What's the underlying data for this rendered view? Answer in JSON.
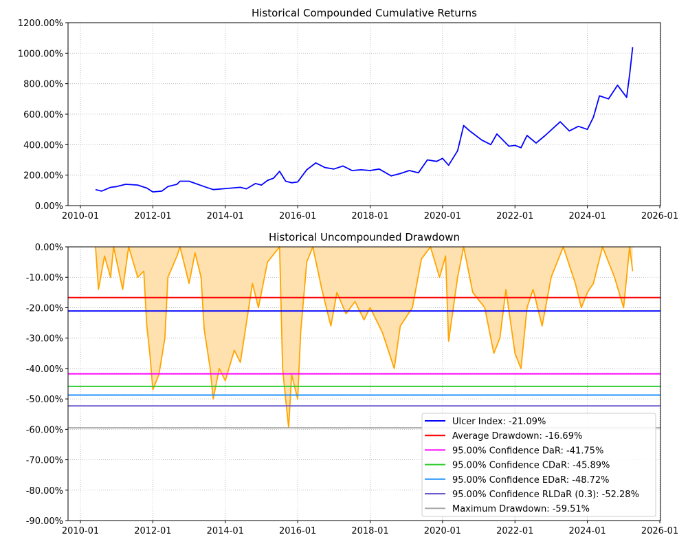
{
  "chart_data": [
    {
      "type": "line",
      "title": "Historical Compounded Cumulative Returns",
      "xlabel": "",
      "ylabel": "",
      "x_range": [
        "2009-09",
        "2026-01"
      ],
      "ylim": [
        0,
        1200
      ],
      "grid": true,
      "x_ticks": [
        "2010-01",
        "2012-01",
        "2014-01",
        "2016-01",
        "2018-01",
        "2020-01",
        "2022-01",
        "2024-01",
        "2026-01"
      ],
      "y_ticks": [
        "0.00%",
        "200.00%",
        "400.00%",
        "600.00%",
        "800.00%",
        "1000.00%",
        "1200.00%"
      ],
      "series": [
        {
          "name": "Cumulative Returns",
          "color": "#0000ff",
          "points": [
            [
              "2010-06",
              105
            ],
            [
              "2010-08",
              95
            ],
            [
              "2010-11",
              120
            ],
            [
              "2011-01",
              125
            ],
            [
              "2011-04",
              140
            ],
            [
              "2011-08",
              135
            ],
            [
              "2011-11",
              115
            ],
            [
              "2012-01",
              90
            ],
            [
              "2012-04",
              95
            ],
            [
              "2012-06",
              125
            ],
            [
              "2012-09",
              140
            ],
            [
              "2012-10",
              160
            ],
            [
              "2013-01",
              160
            ],
            [
              "2013-06",
              125
            ],
            [
              "2013-09",
              105
            ],
            [
              "2013-12",
              110
            ],
            [
              "2014-03",
              115
            ],
            [
              "2014-06",
              120
            ],
            [
              "2014-08",
              110
            ],
            [
              "2014-11",
              145
            ],
            [
              "2015-01",
              135
            ],
            [
              "2015-03",
              165
            ],
            [
              "2015-05",
              180
            ],
            [
              "2015-07",
              225
            ],
            [
              "2015-09",
              160
            ],
            [
              "2015-11",
              150
            ],
            [
              "2016-01",
              155
            ],
            [
              "2016-04",
              235
            ],
            [
              "2016-07",
              280
            ],
            [
              "2016-10",
              250
            ],
            [
              "2017-01",
              240
            ],
            [
              "2017-04",
              260
            ],
            [
              "2017-07",
              230
            ],
            [
              "2017-10",
              235
            ],
            [
              "2018-01",
              230
            ],
            [
              "2018-04",
              240
            ],
            [
              "2018-08",
              195
            ],
            [
              "2018-11",
              210
            ],
            [
              "2019-02",
              230
            ],
            [
              "2019-05",
              215
            ],
            [
              "2019-08",
              300
            ],
            [
              "2019-11",
              290
            ],
            [
              "2020-01",
              310
            ],
            [
              "2020-03",
              265
            ],
            [
              "2020-06",
              360
            ],
            [
              "2020-08",
              525
            ],
            [
              "2020-10",
              490
            ],
            [
              "2021-02",
              430
            ],
            [
              "2021-05",
              400
            ],
            [
              "2021-07",
              470
            ],
            [
              "2021-11",
              390
            ],
            [
              "2022-01",
              395
            ],
            [
              "2022-03",
              380
            ],
            [
              "2022-05",
              460
            ],
            [
              "2022-08",
              410
            ],
            [
              "2022-11",
              460
            ],
            [
              "2023-04",
              550
            ],
            [
              "2023-07",
              490
            ],
            [
              "2023-10",
              520
            ],
            [
              "2024-01",
              500
            ],
            [
              "2024-03",
              580
            ],
            [
              "2024-05",
              720
            ],
            [
              "2024-08",
              700
            ],
            [
              "2024-11",
              790
            ],
            [
              "2025-02",
              710
            ],
            [
              "2025-03",
              860
            ],
            [
              "2025-04",
              1040
            ]
          ]
        }
      ]
    },
    {
      "type": "area",
      "title": "Historical Uncompounded Drawdown",
      "xlabel": "",
      "ylabel": "",
      "x_range": [
        "2009-09",
        "2026-01"
      ],
      "ylim": [
        -90,
        0
      ],
      "grid": true,
      "x_ticks": [
        "2010-01",
        "2012-01",
        "2014-01",
        "2016-01",
        "2018-01",
        "2020-01",
        "2022-01",
        "2024-01",
        "2026-01"
      ],
      "y_ticks": [
        "0.00%",
        "-10.00%",
        "-20.00%",
        "-30.00%",
        "-40.00%",
        "-50.00%",
        "-60.00%",
        "-70.00%",
        "-80.00%",
        "-90.00%"
      ],
      "series": [
        {
          "name": "Drawdown",
          "color": "#ffa500",
          "fill": "#ffe1b0",
          "points": [
            [
              "2010-06",
              0
            ],
            [
              "2010-07",
              -14
            ],
            [
              "2010-09",
              -3
            ],
            [
              "2010-11",
              -10
            ],
            [
              "2010-12",
              0
            ],
            [
              "2011-03",
              -14
            ],
            [
              "2011-05",
              0
            ],
            [
              "2011-08",
              -10
            ],
            [
              "2011-10",
              -8
            ],
            [
              "2011-11",
              -26
            ],
            [
              "2011-12",
              -35
            ],
            [
              "2012-01",
              -47
            ],
            [
              "2012-03",
              -42
            ],
            [
              "2012-05",
              -30
            ],
            [
              "2012-06",
              -10
            ],
            [
              "2012-09",
              -3
            ],
            [
              "2012-10",
              0
            ],
            [
              "2013-01",
              -12
            ],
            [
              "2013-03",
              -2
            ],
            [
              "2013-05",
              -10
            ],
            [
              "2013-06",
              -27
            ],
            [
              "2013-08",
              -40
            ],
            [
              "2013-09",
              -50
            ],
            [
              "2013-11",
              -40
            ],
            [
              "2014-01",
              -44
            ],
            [
              "2014-04",
              -34
            ],
            [
              "2014-06",
              -38
            ],
            [
              "2014-08",
              -25
            ],
            [
              "2014-10",
              -12
            ],
            [
              "2014-12",
              -20
            ],
            [
              "2015-03",
              -5
            ],
            [
              "2015-07",
              0
            ],
            [
              "2015-08",
              -40
            ],
            [
              "2015-09",
              -50
            ],
            [
              "2015-10",
              -59.5
            ],
            [
              "2015-11",
              -42
            ],
            [
              "2016-01",
              -50
            ],
            [
              "2016-02",
              -28
            ],
            [
              "2016-04",
              -5
            ],
            [
              "2016-06",
              0
            ],
            [
              "2016-09",
              -14
            ],
            [
              "2016-12",
              -26
            ],
            [
              "2017-02",
              -15
            ],
            [
              "2017-05",
              -22
            ],
            [
              "2017-08",
              -18
            ],
            [
              "2017-11",
              -24
            ],
            [
              "2018-01",
              -20
            ],
            [
              "2018-05",
              -28
            ],
            [
              "2018-09",
              -40
            ],
            [
              "2018-11",
              -26
            ],
            [
              "2019-03",
              -20
            ],
            [
              "2019-06",
              -4
            ],
            [
              "2019-09",
              0
            ],
            [
              "2019-12",
              -10
            ],
            [
              "2020-02",
              -3
            ],
            [
              "2020-03",
              -31
            ],
            [
              "2020-06",
              -10
            ],
            [
              "2020-08",
              0
            ],
            [
              "2020-11",
              -15
            ],
            [
              "2021-03",
              -20
            ],
            [
              "2021-06",
              -35
            ],
            [
              "2021-08",
              -30
            ],
            [
              "2021-10",
              -14
            ],
            [
              "2022-01",
              -35
            ],
            [
              "2022-03",
              -40
            ],
            [
              "2022-05",
              -20
            ],
            [
              "2022-07",
              -14
            ],
            [
              "2022-10",
              -26
            ],
            [
              "2023-01",
              -10
            ],
            [
              "2023-05",
              0
            ],
            [
              "2023-09",
              -12
            ],
            [
              "2023-11",
              -20
            ],
            [
              "2024-01",
              -15
            ],
            [
              "2024-03",
              -12
            ],
            [
              "2024-06",
              0
            ],
            [
              "2024-10",
              -10
            ],
            [
              "2025-01",
              -20
            ],
            [
              "2025-03",
              0
            ],
            [
              "2025-04",
              -8
            ]
          ]
        }
      ],
      "hlines": [
        {
          "label": "Ulcer Index: -21.09%",
          "value": -21.09,
          "color": "#0000ff"
        },
        {
          "label": "Average Drawdown: -16.69%",
          "value": -16.69,
          "color": "#ff0000"
        },
        {
          "label": "95.00% Confidence DaR: -41.75%",
          "value": -41.75,
          "color": "#ff00ff"
        },
        {
          "label": "95.00% Confidence CDaR: -45.89%",
          "value": -45.89,
          "color": "#32cd32"
        },
        {
          "label": "95.00% Confidence EDaR: -48.72%",
          "value": -48.72,
          "color": "#1e90ff"
        },
        {
          "label": "95.00% Confidence RLDaR (0.3): -52.28%",
          "value": -52.28,
          "color": "#6a5acd"
        },
        {
          "label": "Maximum Drawdown: -59.51%",
          "value": -59.51,
          "color": "#a9a9a9"
        }
      ],
      "legend_position": "lower-right"
    }
  ]
}
